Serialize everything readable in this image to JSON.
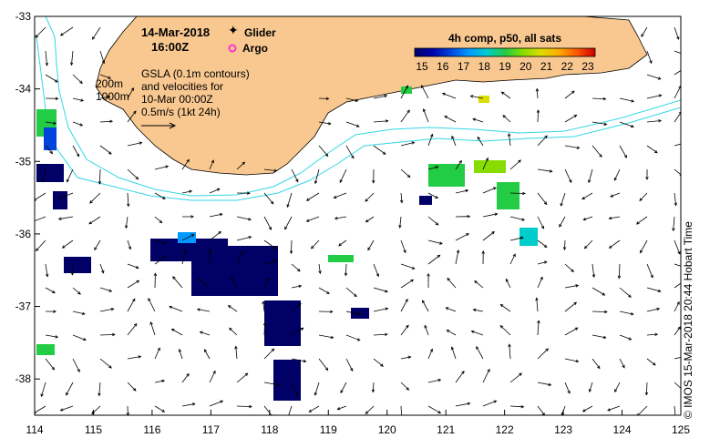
{
  "header": {
    "date": "14-Mar-2018",
    "time": "16:00Z"
  },
  "markers_legend": {
    "glider_label": "Glider",
    "argo_label": "Argo",
    "glider_color": "#ff33cc",
    "argo_color": "#ff33cc"
  },
  "isobaths": {
    "label_200": "200m",
    "label_1000": "1000m",
    "color": "#33d6e6"
  },
  "gsla_note": {
    "line1": "GSLA (0.1m contours)",
    "line2": "and velocities for",
    "line3": "10-Mar 00:00Z",
    "line4": "0.5m/s (1kt 24h)"
  },
  "colorbar": {
    "title": "4h comp, p50, all sats",
    "ticks": [
      "15",
      "16",
      "17",
      "18",
      "19",
      "20",
      "21",
      "22",
      "23"
    ],
    "colors": [
      "#000066",
      "#0000aa",
      "#0044dd",
      "#0099ff",
      "#00cccc",
      "#22cc44",
      "#88dd00",
      "#dddd00",
      "#ffaa00",
      "#ff5500",
      "#cc0000"
    ]
  },
  "axes": {
    "x_ticks": [
      "114",
      "115",
      "116",
      "117",
      "118",
      "119",
      "120",
      "121",
      "122",
      "123",
      "124",
      "125"
    ],
    "y_ticks": [
      "-33",
      "-34",
      "-35",
      "-36",
      "-37",
      "-38"
    ],
    "lon_range": [
      114,
      125
    ],
    "lat_range": [
      -38.5,
      -33
    ]
  },
  "land_color": "#f8c890",
  "credit": "© IMOS 15-Mar-2018 20:44 Hobart Time"
}
